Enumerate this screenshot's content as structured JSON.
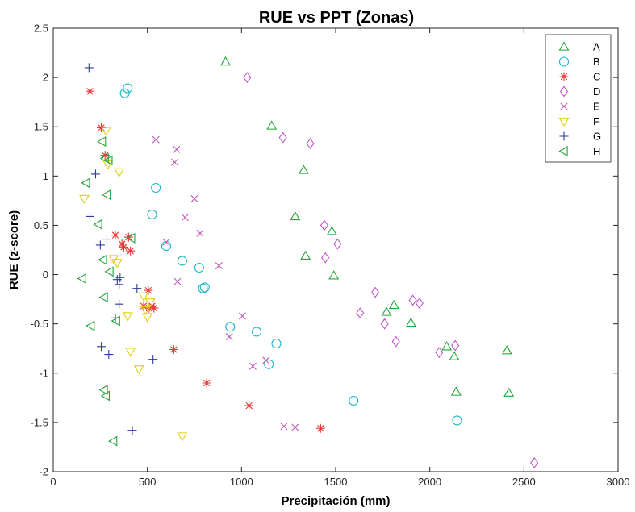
{
  "chart_data": {
    "type": "scatter",
    "title": "RUE vs PPT (Zonas)",
    "xlabel": "Precipitación (mm)",
    "ylabel": "RUE (z-score)",
    "xlim": [
      0,
      3000
    ],
    "ylim": [
      -2,
      2.5
    ],
    "xticks": [
      "0",
      "500",
      "1000",
      "1500",
      "2000",
      "2500",
      "3000"
    ],
    "yticks": [
      "-2",
      "-1.5",
      "-1",
      "-0.5",
      "0",
      "0.5",
      "1",
      "1.5",
      "2",
      "2.5"
    ],
    "grid": false,
    "legend_position": "top-right",
    "series": [
      {
        "name": "A",
        "marker": "triangle-up",
        "color": "#22a63a",
        "x": [
          915,
          1160,
          1330,
          1285,
          1340,
          1480,
          1490,
          1770,
          1810,
          1900,
          2090,
          2130,
          2140,
          2410,
          2420
        ],
        "y": [
          2.16,
          1.51,
          1.06,
          0.59,
          0.19,
          0.44,
          -0.01,
          -0.38,
          -0.31,
          -0.49,
          -0.73,
          -0.83,
          -1.19,
          -0.77,
          -1.2
        ]
      },
      {
        "name": "B",
        "marker": "circle",
        "color": "#1fb8c9",
        "x": [
          380,
          395,
          545,
          525,
          600,
          685,
          775,
          795,
          805,
          940,
          1080,
          1145,
          1185,
          1595,
          2145
        ],
        "y": [
          1.84,
          1.89,
          0.88,
          0.61,
          0.29,
          0.14,
          0.07,
          -0.14,
          -0.13,
          -0.53,
          -0.58,
          -0.91,
          -0.7,
          -1.28,
          -1.48
        ]
      },
      {
        "name": "C",
        "marker": "asterisk",
        "color": "#ee3333",
        "x": [
          195,
          255,
          275,
          330,
          365,
          375,
          400,
          410,
          480,
          505,
          510,
          525,
          535,
          640,
          815,
          1040,
          1420
        ],
        "y": [
          1.86,
          1.49,
          1.21,
          0.4,
          0.31,
          0.28,
          0.38,
          0.24,
          -0.32,
          -0.16,
          -0.34,
          -0.32,
          -0.34,
          -0.76,
          -1.1,
          -1.33,
          -1.56
        ]
      },
      {
        "name": "D",
        "marker": "diamond",
        "color": "#c058c8",
        "x": [
          1030,
          1220,
          1365,
          1440,
          1445,
          1510,
          1630,
          1710,
          1760,
          1820,
          1910,
          1945,
          2050,
          2135,
          2555
        ],
        "y": [
          2.0,
          1.39,
          1.33,
          0.5,
          0.17,
          0.31,
          -0.39,
          -0.18,
          -0.5,
          -0.68,
          -0.26,
          -0.29,
          -0.79,
          -0.72,
          -1.91
        ]
      },
      {
        "name": "E",
        "marker": "x",
        "color": "#c05ab8",
        "x": [
          545,
          655,
          645,
          700,
          750,
          780,
          660,
          600,
          880,
          935,
          1005,
          1060,
          1130,
          1225,
          1285
        ],
        "y": [
          1.37,
          1.27,
          1.14,
          0.58,
          0.77,
          0.42,
          -0.07,
          0.33,
          0.09,
          -0.63,
          -0.42,
          -0.93,
          -0.87,
          -1.54,
          -1.55
        ]
      },
      {
        "name": "F",
        "marker": "triangle-down",
        "color": "#e0d010",
        "x": [
          165,
          280,
          290,
          350,
          320,
          340,
          395,
          410,
          455,
          480,
          490,
          500,
          515,
          685
        ],
        "y": [
          0.77,
          1.46,
          1.12,
          1.04,
          0.16,
          0.12,
          -0.42,
          -0.78,
          -0.96,
          -0.22,
          -0.36,
          -0.43,
          -0.28,
          -1.64
        ]
      },
      {
        "name": "G",
        "marker": "plus",
        "color": "#2d3c9e",
        "x": [
          190,
          195,
          225,
          250,
          255,
          285,
          295,
          330,
          340,
          350,
          350,
          355,
          445,
          530,
          420
        ],
        "y": [
          2.1,
          0.59,
          1.02,
          0.3,
          -0.73,
          0.36,
          -0.81,
          -0.44,
          -0.05,
          -0.1,
          -0.3,
          -0.03,
          -0.14,
          -0.86,
          -1.58
        ]
      },
      {
        "name": "H",
        "marker": "triangle-left",
        "color": "#22a63a",
        "x": [
          155,
          175,
          200,
          240,
          260,
          265,
          270,
          275,
          285,
          295,
          300,
          335,
          415,
          320,
          270,
          280
        ],
        "y": [
          -0.04,
          0.93,
          -0.52,
          0.51,
          1.35,
          0.15,
          -0.23,
          1.18,
          0.81,
          1.16,
          0.03,
          -0.47,
          0.37,
          -1.69,
          -1.17,
          -1.23
        ]
      }
    ]
  }
}
